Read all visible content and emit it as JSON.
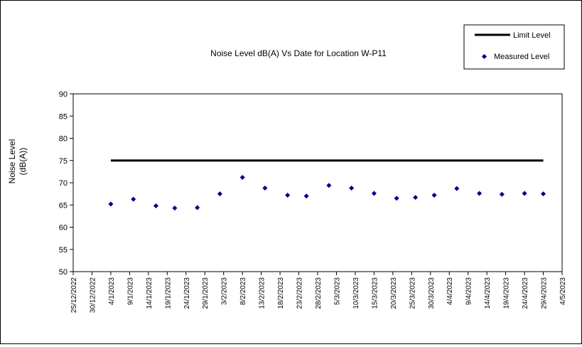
{
  "chart_data": {
    "type": "scatter",
    "title": "Noise Level dB(A) Vs Date for Location W-P11",
    "ylabel_line1": "Noise Level",
    "ylabel_line2": "(dB(A))",
    "ylim": [
      50,
      90
    ],
    "yticks": [
      50,
      55,
      60,
      65,
      70,
      75,
      80,
      85,
      90
    ],
    "xlim": [
      "2022-12-25",
      "2023-05-04"
    ],
    "xtick_labels": [
      "25/12/2022",
      "30/12/2022",
      "4/1/2023",
      "9/1/2023",
      "14/1/2023",
      "19/1/2023",
      "24/1/2023",
      "29/1/2023",
      "3/2/2023",
      "8/2/2023",
      "13/2/2023",
      "18/2/2023",
      "23/2/2023",
      "28/2/2023",
      "5/3/2023",
      "10/3/2023",
      "15/3/2023",
      "20/3/2023",
      "25/3/2023",
      "30/3/2023",
      "4/4/2023",
      "9/4/2023",
      "14/4/2023",
      "19/4/2023",
      "24/4/2023",
      "29/4/2023",
      "4/5/2023"
    ],
    "grid": false,
    "legend_position": "top-right",
    "series": [
      {
        "name": "Limit Level",
        "kind": "line",
        "color": "#000000",
        "x": [
          "2023-01-04",
          "2023-04-29"
        ],
        "y": [
          75,
          75
        ]
      },
      {
        "name": "Measured Level",
        "kind": "scatter",
        "color": "#00008b",
        "x": [
          "2023-01-04",
          "2023-01-10",
          "2023-01-16",
          "2023-01-21",
          "2023-01-27",
          "2023-02-02",
          "2023-02-08",
          "2023-02-14",
          "2023-02-20",
          "2023-02-25",
          "2023-03-03",
          "2023-03-09",
          "2023-03-15",
          "2023-03-21",
          "2023-03-26",
          "2023-03-31",
          "2023-04-06",
          "2023-04-12",
          "2023-04-18",
          "2023-04-24",
          "2023-04-29"
        ],
        "y": [
          65.2,
          66.3,
          64.8,
          64.3,
          64.4,
          67.5,
          71.2,
          68.8,
          67.2,
          67.0,
          69.4,
          68.8,
          67.6,
          66.5,
          66.7,
          67.2,
          68.7,
          67.6,
          67.4,
          67.6,
          67.5
        ]
      }
    ]
  }
}
